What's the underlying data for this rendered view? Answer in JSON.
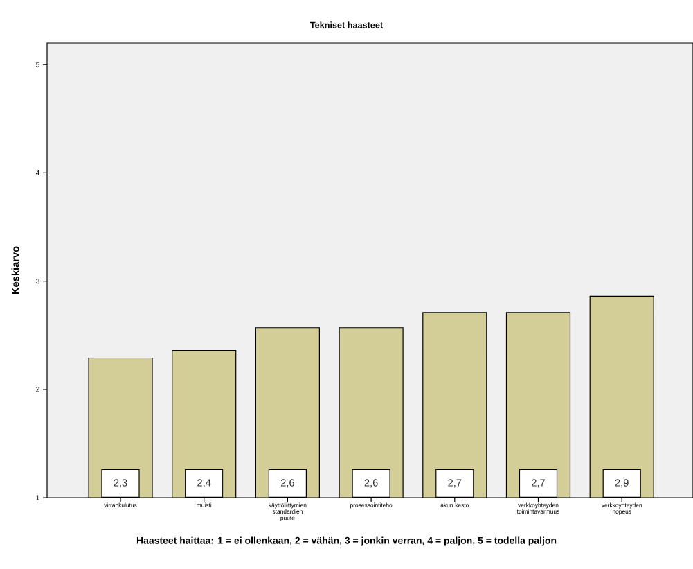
{
  "chart_data": {
    "type": "bar",
    "title": "Tekniset haasteet",
    "xlabel": "Haasteet haittaa: 1 = ei ollenkaan, 2 = vähän, 3 = jonkin verran, 4 = paljon, 5 = todella paljon",
    "ylabel": "Keskiarvo",
    "categories": [
      "virrankulutus",
      "muisti",
      "käyttöliittymien standardien puute",
      "prosessointiteho",
      "akun kesto",
      "verkkoyhteyden toimintavarmuus",
      "verkkoyhteyden nopeus"
    ],
    "values": [
      2.29,
      2.36,
      2.57,
      2.57,
      2.71,
      2.71,
      2.86
    ],
    "value_labels": [
      "2,3",
      "2,4",
      "2,6",
      "2,6",
      "2,7",
      "2,7",
      "2,9"
    ],
    "color": "#d3ce97",
    "ylim": [
      1,
      5.2
    ],
    "yticks": [
      1,
      2,
      3,
      4,
      5
    ]
  }
}
